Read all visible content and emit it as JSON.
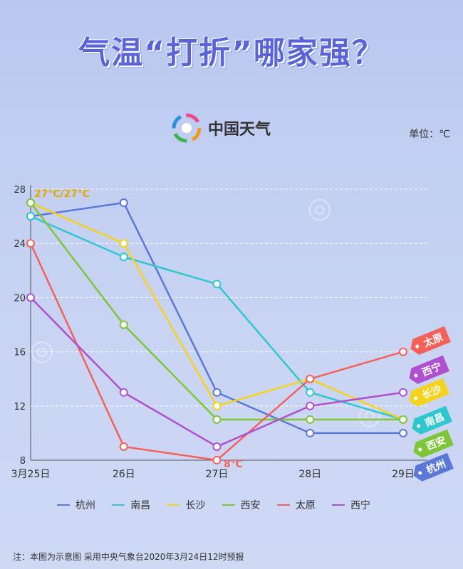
{
  "title": "气温“打折”哪家强？",
  "brand": {
    "name": "中国天气"
  },
  "unit": "单位：℃",
  "note": "注：本图为示意图 采用中央气象台2020年3月24日12时预报",
  "annotations": {
    "top": "27℃/27℃",
    "bottom": "8℃"
  },
  "chart_data": {
    "type": "line",
    "categories": [
      "3月25日",
      "26日",
      "27日",
      "28日",
      "29日"
    ],
    "ylim": [
      8,
      28
    ],
    "yticks": [
      8,
      12,
      16,
      20,
      24,
      28
    ],
    "grid": true,
    "legend_position": "bottom",
    "series": [
      {
        "name": "杭州",
        "color": "#5b77d8",
        "values": [
          26,
          27,
          13,
          10,
          10
        ]
      },
      {
        "name": "南昌",
        "color": "#2ec7d0",
        "values": [
          26,
          23,
          21,
          13,
          11
        ]
      },
      {
        "name": "长沙",
        "color": "#f5d21c",
        "values": [
          27,
          24,
          12,
          14,
          11
        ]
      },
      {
        "name": "西安",
        "color": "#7dc63a",
        "values": [
          27,
          18,
          11,
          11,
          11
        ]
      },
      {
        "name": "太原",
        "color": "#f4615a",
        "values": [
          24,
          9,
          8,
          14,
          16
        ]
      },
      {
        "name": "西宁",
        "color": "#b050d0",
        "values": [
          20,
          13,
          9,
          12,
          13
        ]
      }
    ],
    "end_tags": [
      {
        "series": "太原",
        "label": "太原",
        "color": "#f4615a"
      },
      {
        "series": "西宁",
        "label": "西宁",
        "color": "#b050d0"
      },
      {
        "series": "长沙",
        "label": "长沙",
        "color": "#f5d21c"
      },
      {
        "series": "南昌",
        "label": "南昌",
        "color": "#2ec7d0"
      },
      {
        "series": "西安",
        "label": "西安",
        "color": "#7dc63a"
      },
      {
        "series": "杭州",
        "label": "杭州",
        "color": "#5b77d8"
      }
    ]
  }
}
